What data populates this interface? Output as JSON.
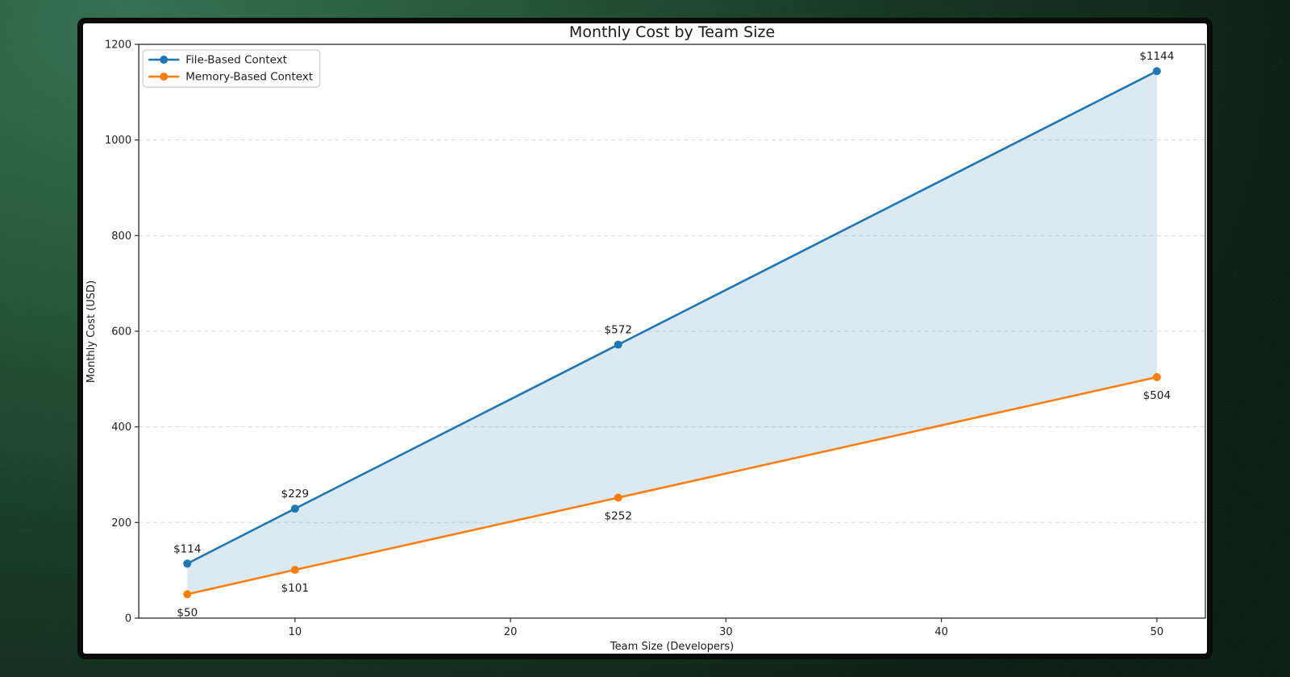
{
  "background": {
    "color_top_left": "#336f4e",
    "color_edge": "#0a2414"
  },
  "chart_data": {
    "type": "line",
    "title": "Monthly Cost by Team Size",
    "xlabel": "Team Size (Developers)",
    "ylabel": "Monthly Cost (USD)",
    "x": [
      5,
      10,
      25,
      50
    ],
    "series": [
      {
        "name": "File-Based Context",
        "color": "#1f77b4",
        "values": [
          114,
          229,
          572,
          1144
        ],
        "labels": [
          "$114",
          "$229",
          "$572",
          "$1144"
        ],
        "label_position": "above"
      },
      {
        "name": "Memory-Based Context",
        "color": "#ff7f0e",
        "values": [
          50,
          101,
          252,
          504
        ],
        "labels": [
          "$50",
          "$101",
          "$252",
          "$504"
        ],
        "label_position": "below"
      }
    ],
    "fill_between": {
      "between": [
        "File-Based Context",
        "Memory-Based Context"
      ],
      "color": "rgba(31,119,180,0.16)"
    },
    "xlim": [
      2.75,
      52.25
    ],
    "ylim": [
      0,
      1200
    ],
    "x_ticks": [
      10,
      20,
      30,
      40,
      50
    ],
    "y_ticks": [
      0,
      200,
      400,
      600,
      800,
      1000,
      1200
    ],
    "grid": {
      "axis": "y",
      "style": "dashed",
      "color": "#d9d9d9"
    },
    "legend": {
      "position": "upper-left"
    }
  }
}
